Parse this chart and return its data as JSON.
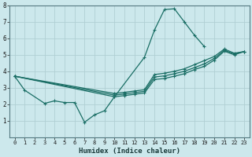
{
  "xlabel": "Humidex (Indice chaleur)",
  "xlim": [
    -0.5,
    23.5
  ],
  "ylim": [
    0,
    8
  ],
  "xtick_vals": [
    0,
    1,
    2,
    3,
    4,
    5,
    6,
    7,
    8,
    9,
    10,
    11,
    12,
    13,
    14,
    15,
    16,
    17,
    18,
    19,
    20,
    21,
    22,
    23
  ],
  "xtick_labels": [
    "0",
    "1",
    "2",
    "3",
    "4",
    "5",
    "6",
    "7",
    "8",
    "9",
    "10",
    "11",
    "12",
    "13",
    "14",
    "15",
    "16",
    "17",
    "18",
    "19",
    "20",
    "21",
    "22",
    "23"
  ],
  "ytick_vals": [
    1,
    2,
    3,
    4,
    5,
    6,
    7,
    8
  ],
  "ytick_labels": [
    "1",
    "2",
    "3",
    "4",
    "5",
    "6",
    "7",
    "8"
  ],
  "bg_color": "#cce8ec",
  "grid_color": "#b0cfd4",
  "line_color": "#1a6e65",
  "curves": [
    {
      "x": [
        0,
        1,
        3,
        4,
        5,
        6,
        7,
        8,
        9,
        10,
        13,
        14,
        15,
        16,
        17,
        18,
        19
      ],
      "y": [
        3.7,
        2.85,
        2.05,
        2.2,
        2.1,
        2.1,
        0.9,
        1.35,
        1.6,
        2.45,
        4.85,
        6.5,
        7.75,
        7.8,
        7.0,
        6.2,
        5.5
      ]
    },
    {
      "x": [
        0,
        10,
        11,
        12,
        13,
        14,
        15,
        16,
        17,
        18,
        19,
        20,
        21,
        22,
        23
      ],
      "y": [
        3.7,
        2.65,
        2.72,
        2.8,
        2.88,
        3.8,
        3.88,
        4.0,
        4.15,
        4.4,
        4.65,
        4.9,
        5.35,
        5.1,
        5.2
      ]
    },
    {
      "x": [
        0,
        10,
        11,
        12,
        13,
        14,
        15,
        16,
        17,
        18,
        19,
        20,
        21,
        22,
        23
      ],
      "y": [
        3.7,
        2.55,
        2.62,
        2.7,
        2.78,
        3.65,
        3.72,
        3.85,
        4.0,
        4.22,
        4.45,
        4.78,
        5.28,
        5.05,
        5.2
      ]
    },
    {
      "x": [
        0,
        10,
        11,
        12,
        13,
        14,
        15,
        16,
        17,
        18,
        19,
        20,
        21,
        22,
        23
      ],
      "y": [
        3.7,
        2.45,
        2.52,
        2.6,
        2.68,
        3.5,
        3.56,
        3.7,
        3.85,
        4.1,
        4.3,
        4.68,
        5.22,
        5.0,
        5.2
      ]
    }
  ]
}
